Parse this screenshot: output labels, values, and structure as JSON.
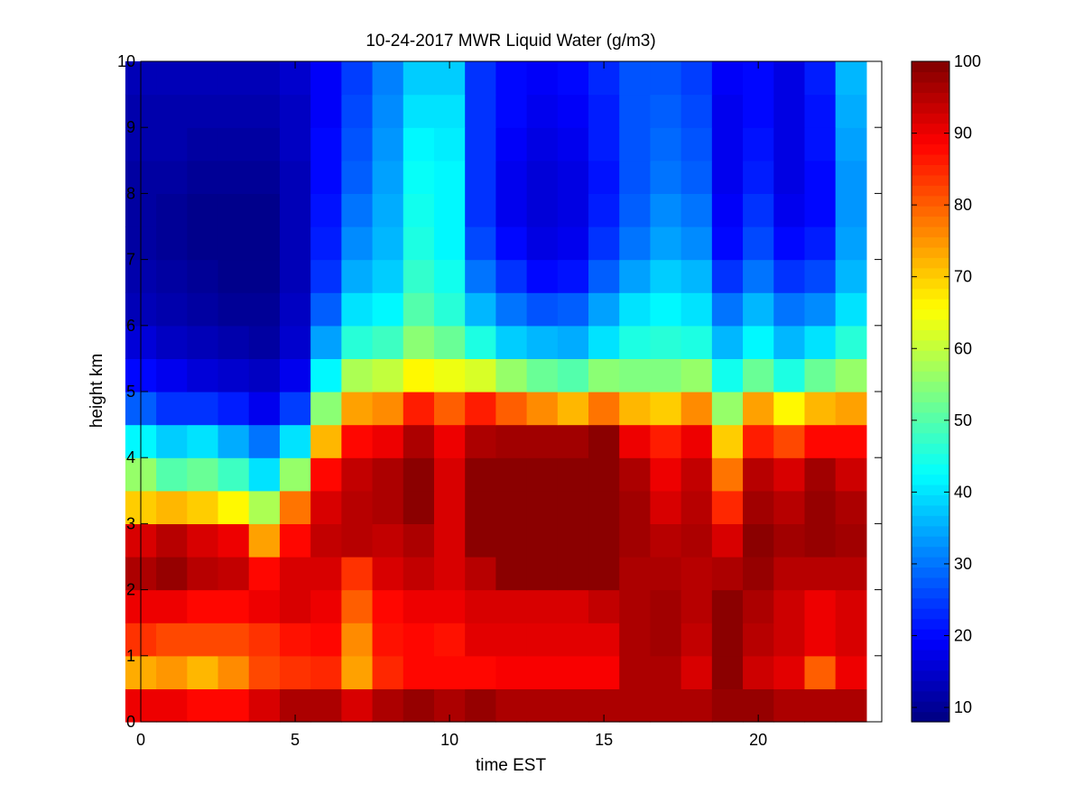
{
  "chart_data": {
    "type": "heatmap",
    "title": "10-24-2017 MWR Liquid Water (g/m3)",
    "xlabel": "time EST",
    "ylabel": "height km",
    "xlim": [
      0,
      24
    ],
    "ylim": [
      0,
      10
    ],
    "x_ticks": [
      0,
      5,
      10,
      15,
      20
    ],
    "y_ticks": [
      0,
      1,
      2,
      3,
      4,
      5,
      6,
      7,
      8,
      9,
      10
    ],
    "colorbar": {
      "colormap": "jet",
      "range": [
        8,
        100
      ],
      "ticks": [
        10,
        20,
        30,
        40,
        50,
        60,
        70,
        80,
        90,
        100
      ]
    },
    "grid": false,
    "x_values": [
      0,
      1,
      2,
      3,
      4,
      5,
      6,
      7,
      8,
      9,
      10,
      11,
      12,
      13,
      14,
      15,
      16,
      17,
      18,
      19,
      20,
      21,
      22,
      23
    ],
    "y_values": [
      0,
      0.5,
      1,
      1.5,
      2,
      2.5,
      3,
      3.5,
      4,
      4.5,
      5,
      5.5,
      6,
      6.5,
      7,
      7.5,
      8,
      8.5,
      9,
      9.5
    ],
    "z_values": [
      [
        90,
        90,
        88,
        88,
        92,
        96,
        96,
        92,
        96,
        98,
        96,
        98,
        96,
        96,
        96,
        96,
        96,
        96,
        96,
        98,
        98,
        96,
        96,
        96
      ],
      [
        73,
        75,
        72,
        76,
        82,
        84,
        85,
        74,
        85,
        88,
        88,
        88,
        89,
        89,
        89,
        89,
        96,
        96,
        92,
        99,
        93,
        91,
        80,
        90
      ],
      [
        84,
        82,
        82,
        82,
        84,
        87,
        88,
        76,
        87,
        88,
        87,
        91,
        91,
        91,
        91,
        91,
        96,
        97,
        94,
        99,
        95,
        93,
        90,
        92
      ],
      [
        90,
        90,
        88,
        88,
        90,
        92,
        90,
        80,
        88,
        90,
        90,
        92,
        92,
        92,
        92,
        94,
        96,
        97,
        95,
        99,
        96,
        93,
        90,
        92
      ],
      [
        96,
        98,
        95,
        94,
        88,
        92,
        92,
        84,
        92,
        94,
        92,
        95,
        99,
        99,
        99,
        99,
        96,
        96,
        95,
        96,
        98,
        95,
        95,
        95
      ],
      [
        92,
        95,
        92,
        90,
        74,
        88,
        94,
        95,
        94,
        96,
        92,
        99,
        99,
        99,
        99,
        99,
        97,
        95,
        96,
        92,
        99,
        97,
        98,
        97
      ],
      [
        70,
        72,
        70,
        66,
        58,
        78,
        92,
        95,
        96,
        99,
        92,
        99,
        99,
        99,
        99,
        99,
        97,
        92,
        95,
        85,
        97,
        95,
        98,
        96
      ],
      [
        56,
        50,
        52,
        48,
        40,
        56,
        88,
        94,
        96,
        99,
        92,
        99,
        99,
        99,
        99,
        99,
        96,
        90,
        94,
        78,
        95,
        92,
        97,
        93
      ],
      [
        42,
        38,
        40,
        35,
        30,
        40,
        72,
        88,
        90,
        96,
        90,
        96,
        97,
        97,
        97,
        99,
        90,
        86,
        90,
        70,
        86,
        82,
        88,
        88
      ],
      [
        28,
        24,
        24,
        22,
        18,
        25,
        55,
        74,
        76,
        86,
        80,
        86,
        80,
        76,
        72,
        78,
        72,
        70,
        76,
        56,
        74,
        66,
        72,
        74
      ],
      [
        20,
        18,
        16,
        15,
        14,
        18,
        42,
        58,
        60,
        66,
        64,
        62,
        56,
        52,
        50,
        55,
        54,
        54,
        56,
        44,
        52,
        45,
        52,
        56
      ],
      [
        16,
        14,
        13,
        12,
        11,
        15,
        34,
        46,
        48,
        55,
        52,
        45,
        38,
        36,
        35,
        40,
        45,
        46,
        45,
        36,
        42,
        36,
        40,
        46
      ],
      [
        13,
        12,
        11,
        10,
        10,
        14,
        28,
        40,
        42,
        50,
        46,
        36,
        30,
        27,
        28,
        34,
        40,
        42,
        40,
        30,
        36,
        30,
        32,
        40
      ],
      [
        12,
        11,
        10,
        9,
        9,
        13,
        24,
        35,
        38,
        47,
        44,
        30,
        24,
        20,
        21,
        28,
        34,
        38,
        36,
        24,
        30,
        24,
        26,
        36
      ],
      [
        11,
        10,
        9,
        9,
        9,
        13,
        22,
        32,
        36,
        45,
        42,
        26,
        20,
        17,
        18,
        24,
        30,
        34,
        32,
        20,
        26,
        20,
        22,
        34
      ],
      [
        11,
        10,
        9,
        9,
        9,
        13,
        21,
        30,
        35,
        44,
        42,
        24,
        18,
        16,
        17,
        22,
        28,
        32,
        30,
        19,
        24,
        18,
        20,
        33
      ],
      [
        11,
        11,
        10,
        10,
        10,
        13,
        20,
        28,
        34,
        43,
        42,
        24,
        18,
        16,
        17,
        21,
        27,
        30,
        28,
        18,
        22,
        17,
        20,
        33
      ],
      [
        12,
        12,
        11,
        11,
        11,
        14,
        20,
        27,
        33,
        42,
        41,
        24,
        19,
        17,
        18,
        22,
        27,
        29,
        27,
        18,
        21,
        17,
        21,
        34
      ],
      [
        12,
        12,
        12,
        12,
        12,
        14,
        19,
        26,
        32,
        40,
        40,
        24,
        20,
        18,
        19,
        22,
        27,
        28,
        26,
        18,
        20,
        17,
        21,
        35
      ],
      [
        13,
        13,
        13,
        13,
        13,
        15,
        19,
        25,
        31,
        38,
        38,
        24,
        20,
        19,
        20,
        23,
        27,
        27,
        25,
        19,
        20,
        17,
        22,
        36
      ]
    ]
  }
}
